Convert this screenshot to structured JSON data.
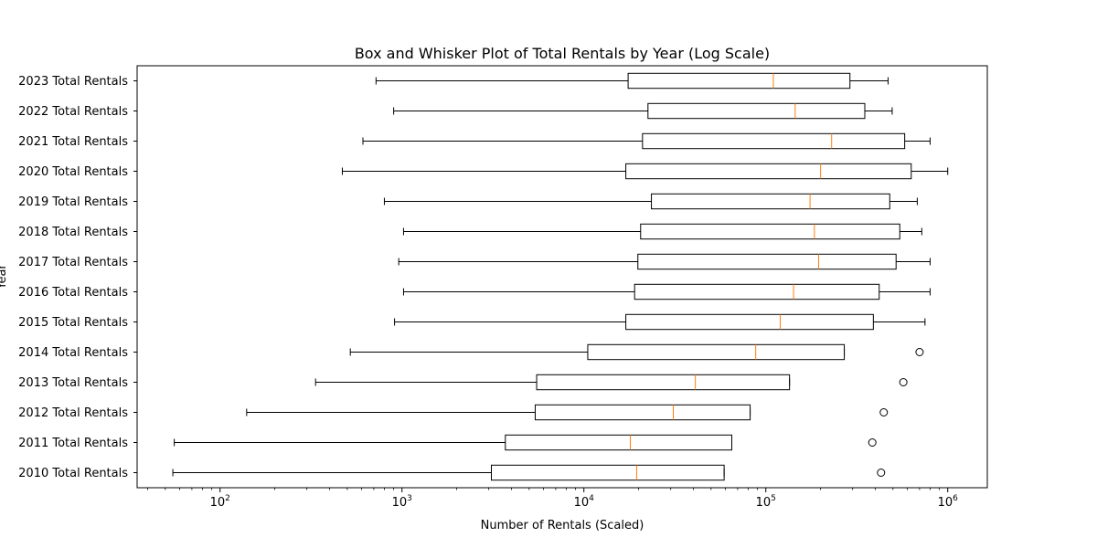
{
  "chart_data": {
    "type": "box",
    "title": "Box and Whisker Plot of Total Rentals by Year (Log Scale)",
    "xlabel": "Number of Rentals (Scaled)",
    "ylabel": "Year",
    "xscale": "log",
    "xlim": [
      35,
      1650000
    ],
    "xticks": [
      {
        "value": 100,
        "base": "10",
        "exp": "2"
      },
      {
        "value": 1000,
        "base": "10",
        "exp": "3"
      },
      {
        "value": 10000,
        "base": "10",
        "exp": "4"
      },
      {
        "value": 100000,
        "base": "10",
        "exp": "5"
      },
      {
        "value": 1000000,
        "base": "10",
        "exp": "6"
      }
    ],
    "grid": false,
    "colors": {
      "box": "#000000",
      "median": "#ff7f0e",
      "flier": "#000000"
    },
    "series": [
      {
        "label": "2010 Total Rentals",
        "whislo": 55,
        "q1": 3100,
        "med": 19500,
        "q3": 59000,
        "whishi": 59000,
        "fliers": [
          430000
        ]
      },
      {
        "label": "2011 Total Rentals",
        "whislo": 56,
        "q1": 3700,
        "med": 18000,
        "q3": 65000,
        "whishi": 65000,
        "fliers": [
          385000
        ]
      },
      {
        "label": "2012 Total Rentals",
        "whislo": 140,
        "q1": 5400,
        "med": 31000,
        "q3": 82000,
        "whishi": 82000,
        "fliers": [
          445000
        ]
      },
      {
        "label": "2013 Total Rentals",
        "whislo": 335,
        "q1": 5500,
        "med": 41000,
        "q3": 135000,
        "whishi": 135000,
        "fliers": [
          570000
        ]
      },
      {
        "label": "2014 Total Rentals",
        "whislo": 520,
        "q1": 10500,
        "med": 88000,
        "q3": 270000,
        "whishi": 270000,
        "fliers": [
          700000
        ]
      },
      {
        "label": "2015 Total Rentals",
        "whislo": 910,
        "q1": 17000,
        "med": 120000,
        "q3": 390000,
        "whishi": 750000,
        "fliers": []
      },
      {
        "label": "2016 Total Rentals",
        "whislo": 1020,
        "q1": 19000,
        "med": 142000,
        "q3": 420000,
        "whishi": 800000,
        "fliers": []
      },
      {
        "label": "2017 Total Rentals",
        "whislo": 960,
        "q1": 19800,
        "med": 195000,
        "q3": 520000,
        "whishi": 800000,
        "fliers": []
      },
      {
        "label": "2018 Total Rentals",
        "whislo": 1020,
        "q1": 20500,
        "med": 185000,
        "q3": 545000,
        "whishi": 720000,
        "fliers": []
      },
      {
        "label": "2019 Total Rentals",
        "whislo": 800,
        "q1": 23500,
        "med": 175000,
        "q3": 480000,
        "whishi": 680000,
        "fliers": []
      },
      {
        "label": "2020 Total Rentals",
        "whislo": 470,
        "q1": 17000,
        "med": 200000,
        "q3": 630000,
        "whishi": 1000000,
        "fliers": []
      },
      {
        "label": "2021 Total Rentals",
        "whislo": 610,
        "q1": 21000,
        "med": 230000,
        "q3": 580000,
        "whishi": 800000,
        "fliers": []
      },
      {
        "label": "2022 Total Rentals",
        "whislo": 900,
        "q1": 22500,
        "med": 145000,
        "q3": 350000,
        "whishi": 495000,
        "fliers": []
      },
      {
        "label": "2023 Total Rentals",
        "whislo": 720,
        "q1": 17500,
        "med": 110000,
        "q3": 290000,
        "whishi": 470000,
        "fliers": []
      }
    ]
  }
}
